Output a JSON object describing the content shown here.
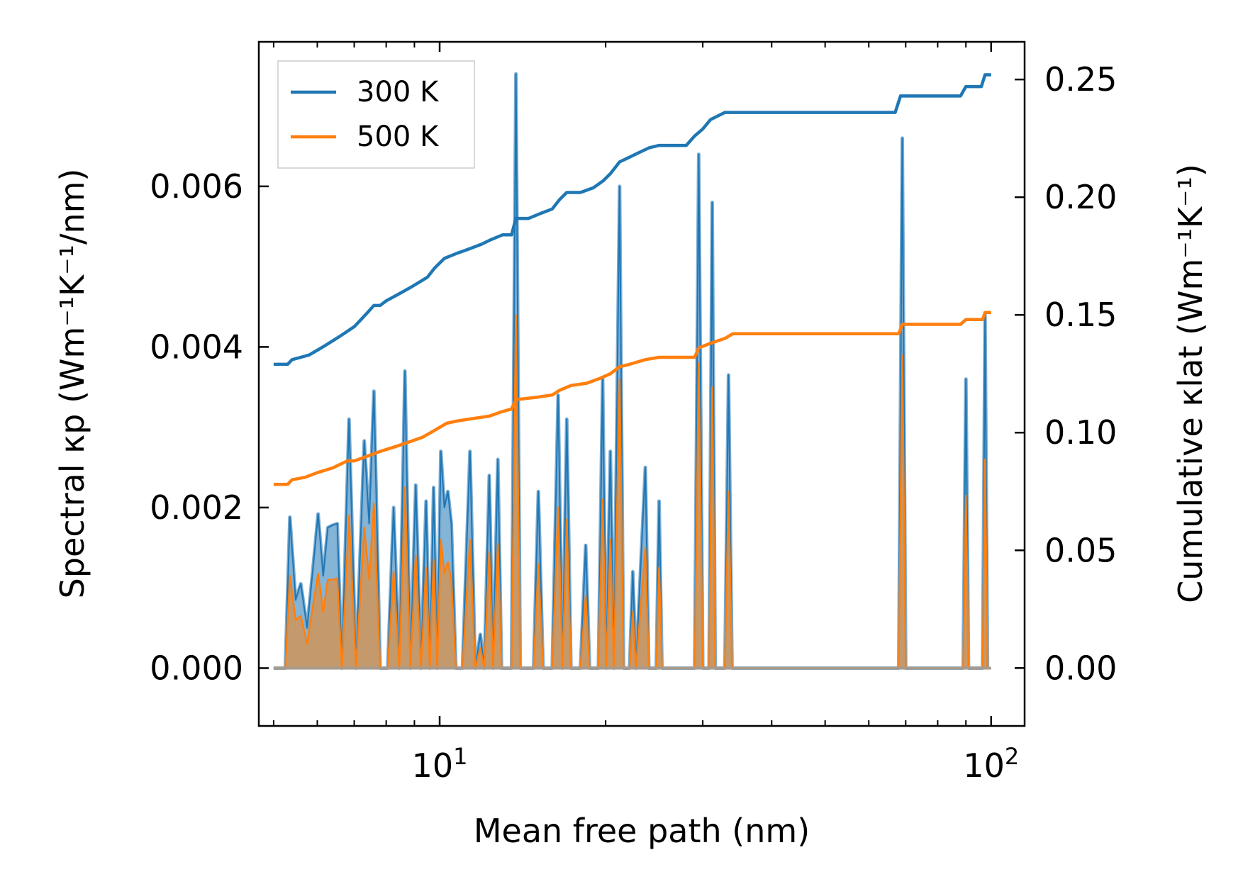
{
  "chart_data": {
    "type": "line",
    "x_scale": "log",
    "xlabel": "Mean free path (nm)",
    "ylabel_left": "Spectral κp (Wm⁻¹K⁻¹/nm)",
    "ylabel_right": "Cumulative κlat (Wm⁻¹K⁻¹)",
    "xlim": [
      4.7,
      115
    ],
    "ylim_left": [
      -0.00072,
      0.0078
    ],
    "ylim_right": [
      -0.0246,
      0.266
    ],
    "x_ticks": [
      {
        "value": 10,
        "base": "10",
        "exp": "1"
      },
      {
        "value": 100,
        "base": "10",
        "exp": "2"
      }
    ],
    "y_ticks_left": [
      "0.000",
      "0.002",
      "0.004",
      "0.006"
    ],
    "y_ticks_right": [
      "0.00",
      "0.05",
      "0.10",
      "0.15",
      "0.20",
      "0.25"
    ],
    "y_tick_values_left": [
      0,
      0.002,
      0.004,
      0.006
    ],
    "y_tick_values_right": [
      0,
      0.05,
      0.1,
      0.15,
      0.2,
      0.25
    ],
    "legend": {
      "position": "top-left",
      "entries": [
        "300 K",
        "500 K"
      ]
    },
    "colors": {
      "300 K": "#1f77b4",
      "500 K": "#ff7f0e",
      "fill_500": "#c49a6c"
    },
    "spectral_series": [
      {
        "name": "300 K",
        "points": [
          [
            5.0,
            0.0
          ],
          [
            5.25,
            0.0
          ],
          [
            5.35,
            0.00188
          ],
          [
            5.48,
            0.00085
          ],
          [
            5.6,
            0.00105
          ],
          [
            5.75,
            0.0005
          ],
          [
            5.9,
            0.00128
          ],
          [
            6.02,
            0.00192
          ],
          [
            6.15,
            0.00115
          ],
          [
            6.27,
            0.00175
          ],
          [
            6.4,
            0.00178
          ],
          [
            6.52,
            0.0018
          ],
          [
            6.65,
            0.0
          ],
          [
            6.85,
            0.0031
          ],
          [
            7.05,
            0.0
          ],
          [
            7.3,
            0.00283
          ],
          [
            7.45,
            0.0018
          ],
          [
            7.6,
            0.00345
          ],
          [
            7.8,
            0.0
          ],
          [
            8.05,
            0.0
          ],
          [
            8.25,
            0.002
          ],
          [
            8.45,
            0.0
          ],
          [
            8.65,
            0.0037
          ],
          [
            8.85,
            0.0
          ],
          [
            9.05,
            0.00228
          ],
          [
            9.25,
            0.0
          ],
          [
            9.45,
            0.00208
          ],
          [
            9.6,
            0.0
          ],
          [
            9.75,
            0.00225
          ],
          [
            9.9,
            0.0
          ],
          [
            10.05,
            0.0027
          ],
          [
            10.2,
            0.002
          ],
          [
            10.35,
            0.0022
          ],
          [
            10.5,
            0.0018
          ],
          [
            10.7,
            0.0
          ],
          [
            11.0,
            0.0
          ],
          [
            11.35,
            0.0027
          ],
          [
            11.6,
            0.0
          ],
          [
            11.85,
            0.00042
          ],
          [
            12.05,
            0.0
          ],
          [
            12.3,
            0.0024
          ],
          [
            12.5,
            0.0
          ],
          [
            12.75,
            0.0026
          ],
          [
            12.95,
            0.0
          ],
          [
            13.5,
            0.0
          ],
          [
            13.75,
            0.0074
          ],
          [
            14.0,
            0.0
          ],
          [
            14.8,
            0.0
          ],
          [
            15.1,
            0.0022
          ],
          [
            15.4,
            0.0
          ],
          [
            16.0,
            0.0
          ],
          [
            16.4,
            0.0034
          ],
          [
            16.7,
            0.0
          ],
          [
            17.0,
            0.0031
          ],
          [
            17.3,
            0.0
          ],
          [
            18.0,
            0.0
          ],
          [
            18.4,
            0.00153
          ],
          [
            18.7,
            0.0
          ],
          [
            19.4,
            0.0
          ],
          [
            19.75,
            0.0036
          ],
          [
            20.05,
            0.0
          ],
          [
            20.4,
            0.0027
          ],
          [
            20.7,
            0.0
          ],
          [
            21.2,
            0.006
          ],
          [
            21.55,
            0.0
          ],
          [
            22.1,
            0.0
          ],
          [
            22.4,
            0.0012
          ],
          [
            22.7,
            0.0
          ],
          [
            23.6,
            0.0025
          ],
          [
            23.95,
            0.0
          ],
          [
            24.7,
            0.0
          ],
          [
            25.0,
            0.00208
          ],
          [
            25.3,
            0.0
          ],
          [
            29.0,
            0.0
          ],
          [
            29.5,
            0.0064
          ],
          [
            30.0,
            0.0
          ],
          [
            30.8,
            0.0
          ],
          [
            31.2,
            0.0058
          ],
          [
            31.6,
            0.0
          ],
          [
            32.9,
            0.0
          ],
          [
            33.4,
            0.00365
          ],
          [
            33.9,
            0.0
          ],
          [
            68.0,
            0.0
          ],
          [
            69.0,
            0.0066
          ],
          [
            70.0,
            0.0
          ],
          [
            89.0,
            0.0
          ],
          [
            90.0,
            0.0036
          ],
          [
            91.0,
            0.0
          ],
          [
            96.5,
            0.0
          ],
          [
            97.5,
            0.0044
          ],
          [
            98.5,
            0.0
          ]
        ]
      },
      {
        "name": "500 K",
        "points": [
          [
            5.0,
            0.0
          ],
          [
            5.25,
            0.0
          ],
          [
            5.35,
            0.00115
          ],
          [
            5.48,
            0.0006
          ],
          [
            5.6,
            0.00065
          ],
          [
            5.75,
            0.0003
          ],
          [
            5.9,
            0.0008
          ],
          [
            6.02,
            0.00118
          ],
          [
            6.15,
            0.0007
          ],
          [
            6.27,
            0.0011
          ],
          [
            6.4,
            0.0011
          ],
          [
            6.52,
            0.00112
          ],
          [
            6.65,
            0.0
          ],
          [
            6.85,
            0.0019
          ],
          [
            7.05,
            0.0
          ],
          [
            7.3,
            0.00175
          ],
          [
            7.45,
            0.0011
          ],
          [
            7.6,
            0.00205
          ],
          [
            7.8,
            0.0
          ],
          [
            8.05,
            0.0
          ],
          [
            8.25,
            0.0012
          ],
          [
            8.45,
            0.0
          ],
          [
            8.65,
            0.00225
          ],
          [
            8.85,
            0.0
          ],
          [
            9.05,
            0.0014
          ],
          [
            9.25,
            0.0
          ],
          [
            9.45,
            0.00125
          ],
          [
            9.6,
            0.0
          ],
          [
            9.75,
            0.00135
          ],
          [
            9.9,
            0.0
          ],
          [
            10.05,
            0.0016
          ],
          [
            10.2,
            0.00118
          ],
          [
            10.35,
            0.00132
          ],
          [
            10.5,
            0.0011
          ],
          [
            10.7,
            0.0
          ],
          [
            11.0,
            0.0
          ],
          [
            11.35,
            0.0016
          ],
          [
            11.6,
            0.0
          ],
          [
            11.85,
            0.00025
          ],
          [
            12.05,
            0.0
          ],
          [
            12.3,
            0.00145
          ],
          [
            12.5,
            0.0
          ],
          [
            12.75,
            0.00155
          ],
          [
            12.95,
            0.0
          ],
          [
            13.5,
            0.0
          ],
          [
            13.75,
            0.0044
          ],
          [
            14.0,
            0.0
          ],
          [
            14.8,
            0.0
          ],
          [
            15.1,
            0.0013
          ],
          [
            15.4,
            0.0
          ],
          [
            16.0,
            0.0
          ],
          [
            16.4,
            0.002
          ],
          [
            16.7,
            0.0
          ],
          [
            17.0,
            0.00185
          ],
          [
            17.3,
            0.0
          ],
          [
            18.0,
            0.0
          ],
          [
            18.4,
            0.0009
          ],
          [
            18.7,
            0.0
          ],
          [
            19.4,
            0.0
          ],
          [
            19.75,
            0.0021
          ],
          [
            20.05,
            0.0
          ],
          [
            20.4,
            0.0016
          ],
          [
            20.7,
            0.0
          ],
          [
            21.2,
            0.0036
          ],
          [
            21.55,
            0.0
          ],
          [
            22.1,
            0.0
          ],
          [
            22.4,
            0.0007
          ],
          [
            22.7,
            0.0
          ],
          [
            23.6,
            0.0015
          ],
          [
            23.95,
            0.0
          ],
          [
            24.7,
            0.0
          ],
          [
            25.0,
            0.00125
          ],
          [
            25.3,
            0.0
          ],
          [
            29.0,
            0.0
          ],
          [
            29.5,
            0.0038
          ],
          [
            30.0,
            0.0
          ],
          [
            30.8,
            0.0
          ],
          [
            31.2,
            0.0035
          ],
          [
            31.6,
            0.0
          ],
          [
            32.9,
            0.0
          ],
          [
            33.4,
            0.0022
          ],
          [
            33.9,
            0.0
          ],
          [
            68.0,
            0.0
          ],
          [
            69.0,
            0.0039
          ],
          [
            70.0,
            0.0
          ],
          [
            89.0,
            0.0
          ],
          [
            90.0,
            0.00215
          ],
          [
            91.0,
            0.0
          ],
          [
            96.5,
            0.0
          ],
          [
            97.5,
            0.0026
          ],
          [
            98.5,
            0.0
          ]
        ]
      }
    ],
    "cumulative_series": [
      {
        "name": "300 K",
        "points": [
          [
            5.0,
            0.129
          ],
          [
            5.3,
            0.129
          ],
          [
            5.4,
            0.131
          ],
          [
            5.6,
            0.132
          ],
          [
            5.8,
            0.133
          ],
          [
            6.0,
            0.135
          ],
          [
            6.2,
            0.137
          ],
          [
            6.4,
            0.139
          ],
          [
            6.6,
            0.141
          ],
          [
            6.8,
            0.143
          ],
          [
            7.0,
            0.145
          ],
          [
            7.2,
            0.148
          ],
          [
            7.4,
            0.151
          ],
          [
            7.6,
            0.154
          ],
          [
            7.8,
            0.154
          ],
          [
            8.0,
            0.156
          ],
          [
            8.3,
            0.158
          ],
          [
            8.6,
            0.16
          ],
          [
            8.9,
            0.162
          ],
          [
            9.2,
            0.164
          ],
          [
            9.5,
            0.166
          ],
          [
            9.8,
            0.17
          ],
          [
            10.2,
            0.174
          ],
          [
            10.7,
            0.176
          ],
          [
            11.3,
            0.178
          ],
          [
            11.9,
            0.18
          ],
          [
            12.4,
            0.182
          ],
          [
            13.0,
            0.184
          ],
          [
            13.5,
            0.184
          ],
          [
            13.75,
            0.191
          ],
          [
            14.5,
            0.191
          ],
          [
            15.2,
            0.193
          ],
          [
            16.0,
            0.195
          ],
          [
            16.5,
            0.199
          ],
          [
            17.0,
            0.202
          ],
          [
            18.0,
            0.202
          ],
          [
            19.0,
            0.204
          ],
          [
            19.8,
            0.207
          ],
          [
            20.4,
            0.21
          ],
          [
            21.2,
            0.215
          ],
          [
            22.1,
            0.217
          ],
          [
            23.0,
            0.219
          ],
          [
            24.0,
            0.221
          ],
          [
            25.0,
            0.222
          ],
          [
            28.0,
            0.222
          ],
          [
            29.0,
            0.226
          ],
          [
            30.0,
            0.229
          ],
          [
            31.0,
            0.233
          ],
          [
            32.9,
            0.236
          ],
          [
            34.0,
            0.236
          ],
          [
            67.0,
            0.236
          ],
          [
            68.5,
            0.243
          ],
          [
            88.0,
            0.243
          ],
          [
            90.0,
            0.247
          ],
          [
            96.0,
            0.247
          ],
          [
            97.5,
            0.252
          ],
          [
            100.0,
            0.252
          ]
        ]
      },
      {
        "name": "500 K",
        "points": [
          [
            5.0,
            0.078
          ],
          [
            5.3,
            0.078
          ],
          [
            5.4,
            0.08
          ],
          [
            5.7,
            0.081
          ],
          [
            6.0,
            0.083
          ],
          [
            6.4,
            0.085
          ],
          [
            6.8,
            0.088
          ],
          [
            7.0,
            0.088
          ],
          [
            7.4,
            0.09
          ],
          [
            7.8,
            0.092
          ],
          [
            8.3,
            0.094
          ],
          [
            8.8,
            0.096
          ],
          [
            9.3,
            0.098
          ],
          [
            9.8,
            0.101
          ],
          [
            10.3,
            0.104
          ],
          [
            10.8,
            0.105
          ],
          [
            11.5,
            0.106
          ],
          [
            12.3,
            0.107
          ],
          [
            13.0,
            0.109
          ],
          [
            13.5,
            0.11
          ],
          [
            13.75,
            0.114
          ],
          [
            15.0,
            0.115
          ],
          [
            16.0,
            0.116
          ],
          [
            16.5,
            0.118
          ],
          [
            17.3,
            0.12
          ],
          [
            18.5,
            0.121
          ],
          [
            19.5,
            0.123
          ],
          [
            20.4,
            0.125
          ],
          [
            21.2,
            0.128
          ],
          [
            22.1,
            0.129
          ],
          [
            23.6,
            0.131
          ],
          [
            25.0,
            0.132
          ],
          [
            29.0,
            0.132
          ],
          [
            29.5,
            0.136
          ],
          [
            31.0,
            0.138
          ],
          [
            32.9,
            0.14
          ],
          [
            34.0,
            0.142
          ],
          [
            68.0,
            0.142
          ],
          [
            69.0,
            0.146
          ],
          [
            88.0,
            0.146
          ],
          [
            90.0,
            0.148
          ],
          [
            96.5,
            0.148
          ],
          [
            97.5,
            0.151
          ],
          [
            100.0,
            0.151
          ]
        ]
      }
    ]
  }
}
